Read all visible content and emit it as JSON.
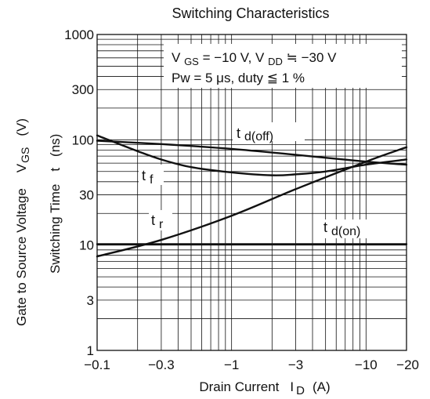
{
  "chart_data": {
    "type": "line",
    "title": "Switching Characteristics",
    "xlabel": "Drain Current",
    "xlabel_symbol": "I",
    "xlabel_sub": "D",
    "xlabel_unit": "(A)",
    "ylabel_outer": {
      "text": "Gate to Source Voltage",
      "symbol": "V",
      "sub": "GS",
      "unit": "(V)"
    },
    "ylabel_inner": {
      "text": "Switching Time",
      "symbol": "t",
      "unit": "(ns)"
    },
    "x_scale": "log",
    "y_scale": "log",
    "xlim": [
      -0.1,
      -20
    ],
    "ylim": [
      1,
      1000
    ],
    "x_ticks": [
      -0.1,
      -0.3,
      -1,
      -3,
      -10,
      -20
    ],
    "x_tick_labels": [
      "−0.1",
      "−0.3",
      "−1",
      "−3",
      "−10",
      "−20"
    ],
    "y_ticks": [
      1,
      3,
      10,
      30,
      100,
      300,
      1000
    ],
    "y_tick_labels": [
      "1",
      "3",
      "10",
      "30",
      "100",
      "300",
      "1000"
    ],
    "grid": true,
    "conditions": {
      "line1": "V GS = −10 V, V DD ≗ −30 V",
      "line2": "Pw = 5 μs, duty ≤ 1 %"
    },
    "series": [
      {
        "name": "t d(off)",
        "label_main": "t",
        "label_sub": "d(off)",
        "x": [
          -0.1,
          -0.3,
          -1,
          -3,
          -10,
          -20
        ],
        "y": [
          98,
          91,
          82,
          72,
          62,
          58
        ]
      },
      {
        "name": "t f",
        "label_main": "t",
        "label_sub": "f",
        "x": [
          -0.1,
          -0.2,
          -0.3,
          -0.5,
          -1,
          -2,
          -3,
          -5,
          -10,
          -20
        ],
        "y": [
          110,
          78,
          65,
          55,
          49,
          46,
          47,
          50,
          58,
          65
        ]
      },
      {
        "name": "t r",
        "label_main": "t",
        "label_sub": "r",
        "x": [
          -0.1,
          -0.3,
          -1,
          -3,
          -10,
          -20
        ],
        "y": [
          7.8,
          11.2,
          19,
          34,
          62,
          85
        ]
      },
      {
        "name": "t d(on)",
        "label_main": "t",
        "label_sub": "d(on)",
        "x": [
          -0.1,
          -20
        ],
        "y": [
          10.2,
          10.2
        ]
      }
    ]
  }
}
